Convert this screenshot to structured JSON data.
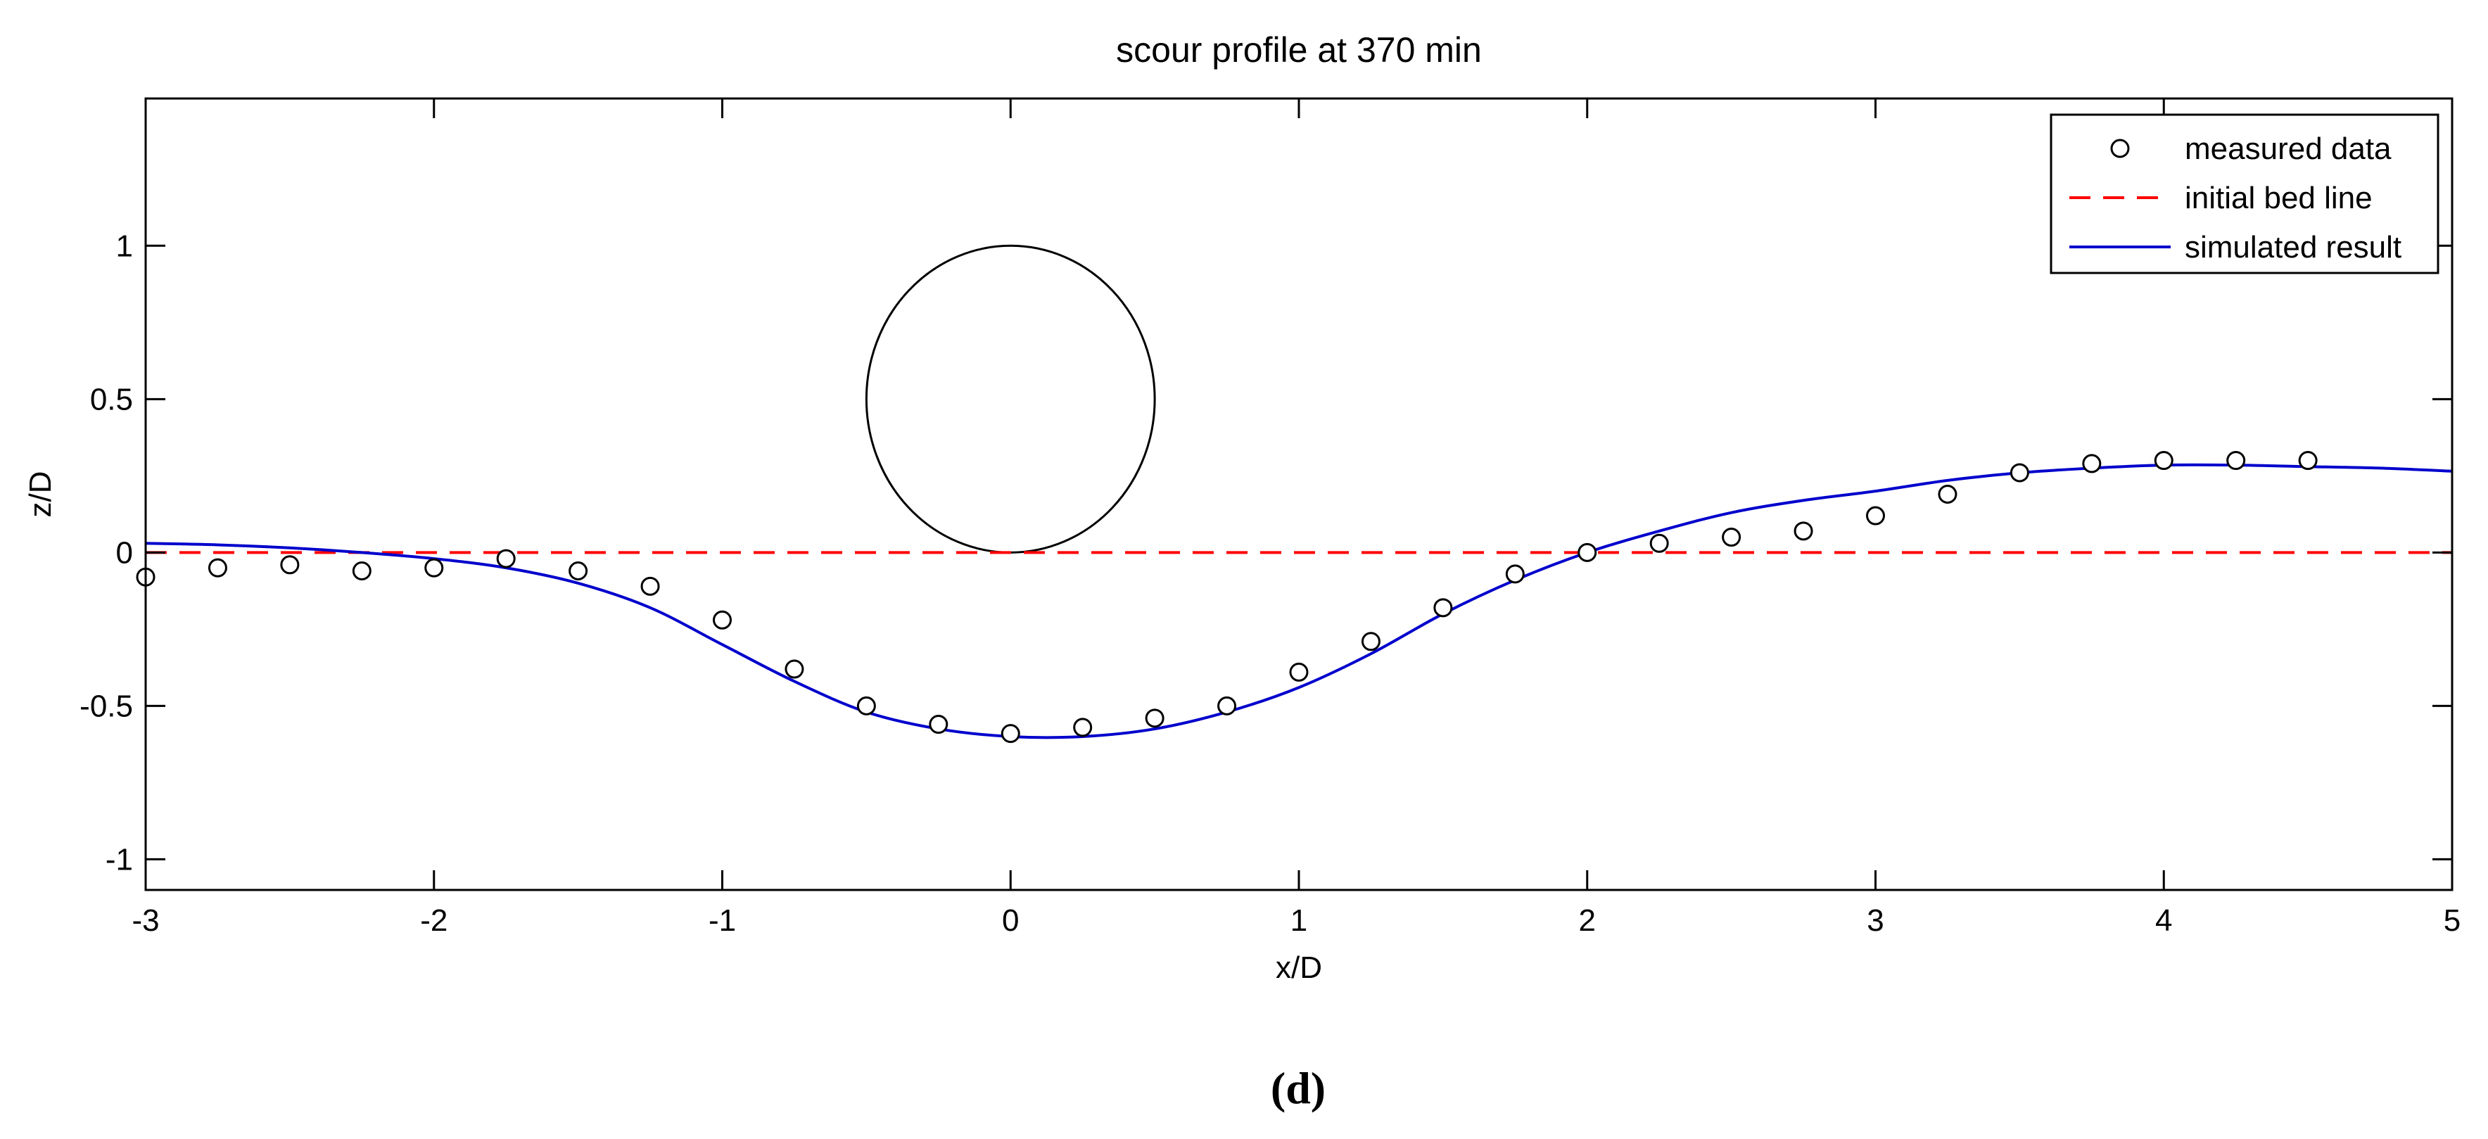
{
  "chart_data": {
    "type": "line",
    "title": "scour profile at 370 min",
    "xlabel": "x/D",
    "ylabel": "z/D",
    "xlim": [
      -3,
      5
    ],
    "ylim": [
      -1.1,
      1.48
    ],
    "xticks": [
      -3,
      -2,
      -1,
      0,
      1,
      2,
      3,
      4,
      5
    ],
    "yticks": [
      -1,
      -0.5,
      0,
      0.5,
      1
    ],
    "xtick_labels": [
      "-3",
      "-2",
      "-1",
      "0",
      "1",
      "2",
      "3",
      "4",
      "5"
    ],
    "ytick_labels": [
      "-1",
      "-0.5",
      "0",
      "0.5",
      "1"
    ],
    "grid": false,
    "legend_position": "top-right",
    "caption": "(d)",
    "pipe": {
      "center": [
        0,
        0.5
      ],
      "radius": 0.5,
      "color": "#000000"
    },
    "series": [
      {
        "name": "measured data",
        "style": "marker-circle",
        "color": "#000000",
        "x": [
          -3,
          -2.75,
          -2.5,
          -2.25,
          -2,
          -1.75,
          -1.5,
          -1.25,
          -1,
          -0.75,
          -0.5,
          -0.25,
          0,
          0.25,
          0.5,
          0.75,
          1,
          1.25,
          1.5,
          1.75,
          2,
          2.25,
          2.5,
          2.75,
          3,
          3.25,
          3.5,
          3.75,
          4,
          4.25,
          4.5
        ],
        "y": [
          -0.08,
          -0.05,
          -0.04,
          -0.06,
          -0.05,
          -0.02,
          -0.06,
          -0.11,
          -0.22,
          -0.38,
          -0.5,
          -0.56,
          -0.59,
          -0.57,
          -0.54,
          -0.5,
          -0.39,
          -0.29,
          -0.18,
          -0.07,
          0.0,
          0.03,
          0.05,
          0.07,
          0.12,
          0.19,
          0.26,
          0.29,
          0.3,
          0.3,
          0.3
        ]
      },
      {
        "name": "initial bed line",
        "style": "dashed-line",
        "color": "#ff0000",
        "x": [
          -3,
          5
        ],
        "y": [
          0,
          0
        ]
      },
      {
        "name": "simulated result",
        "style": "solid-line",
        "color": "#0000cc",
        "x": [
          -3,
          -2.75,
          -2.5,
          -2.25,
          -2,
          -1.75,
          -1.5,
          -1.25,
          -1,
          -0.75,
          -0.5,
          -0.25,
          0,
          0.25,
          0.5,
          0.75,
          1,
          1.25,
          1.5,
          1.75,
          2,
          2.25,
          2.5,
          2.75,
          3,
          3.25,
          3.5,
          3.75,
          4,
          4.25,
          4.5,
          4.75,
          5
        ],
        "y": [
          0.03,
          0.025,
          0.015,
          0.0,
          -0.02,
          -0.05,
          -0.1,
          -0.18,
          -0.3,
          -0.42,
          -0.52,
          -0.575,
          -0.6,
          -0.6,
          -0.575,
          -0.52,
          -0.44,
          -0.33,
          -0.2,
          -0.09,
          0.0,
          0.07,
          0.13,
          0.17,
          0.2,
          0.235,
          0.26,
          0.275,
          0.285,
          0.285,
          0.28,
          0.275,
          0.265
        ]
      }
    ]
  }
}
